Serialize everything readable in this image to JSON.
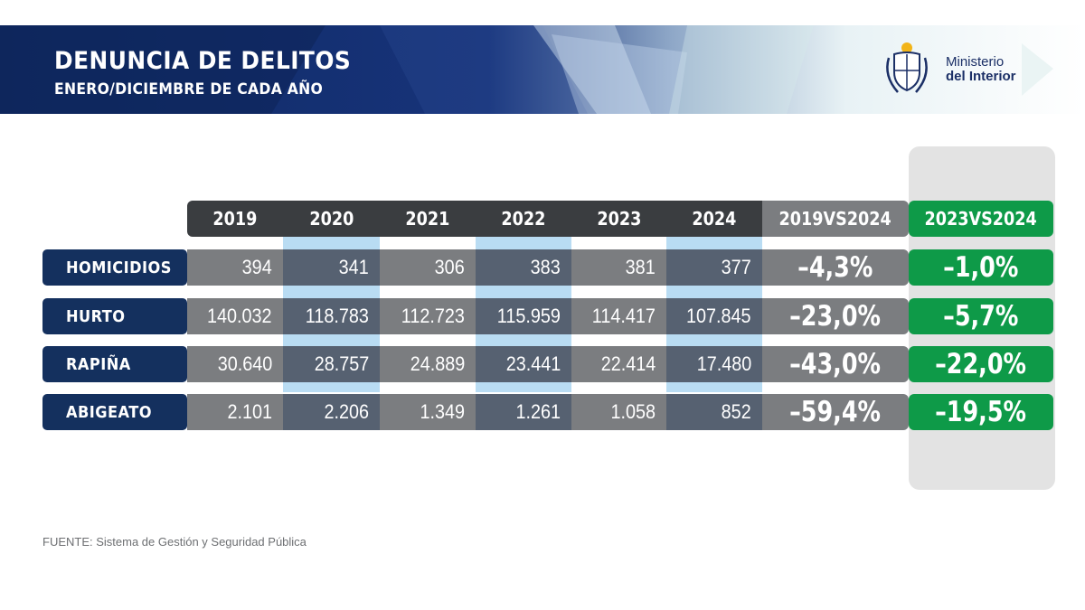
{
  "header": {
    "title": "DENUNCIA DE DELITOS",
    "subtitle": "ENERO/DICIEMBRE DE CADA AÑO",
    "logo_line1": "Ministerio",
    "logo_line2": "del Interior"
  },
  "source": "FUENTE: Sistema de Gestión y Seguridad Pública",
  "colors": {
    "navy": "#14305e",
    "dark_gray": "#3a3d40",
    "mid_gray": "#7b7d80",
    "slate": "#566171",
    "light_blue": "#b9dcf3",
    "green": "#0e9a48",
    "panel": "#e3e3e3"
  },
  "chart_data": {
    "type": "table",
    "columns": [
      "2019",
      "2020",
      "2021",
      "2022",
      "2023",
      "2024",
      "2019VS2024",
      "2023VS2024"
    ],
    "rows": [
      {
        "label": "HOMICIDIOS",
        "values": [
          "394",
          "341",
          "306",
          "383",
          "381",
          "377"
        ],
        "change_2019_2024": "–4,3%",
        "change_2023_2024": "–1,0%"
      },
      {
        "label": "HURTO",
        "values": [
          "140.032",
          "118.783",
          "112.723",
          "115.959",
          "114.417",
          "107.845"
        ],
        "change_2019_2024": "–23,0%",
        "change_2023_2024": "–5,7%"
      },
      {
        "label": "RAPIÑA",
        "values": [
          "30.640",
          "28.757",
          "24.889",
          "23.441",
          "22.414",
          "17.480"
        ],
        "change_2019_2024": "–43,0%",
        "change_2023_2024": "–22,0%"
      },
      {
        "label": "ABIGEATO",
        "values": [
          "2.101",
          "2.206",
          "1.349",
          "1.261",
          "1.058",
          "852"
        ],
        "change_2019_2024": "–59,4%",
        "change_2023_2024": "–19,5%"
      }
    ]
  }
}
